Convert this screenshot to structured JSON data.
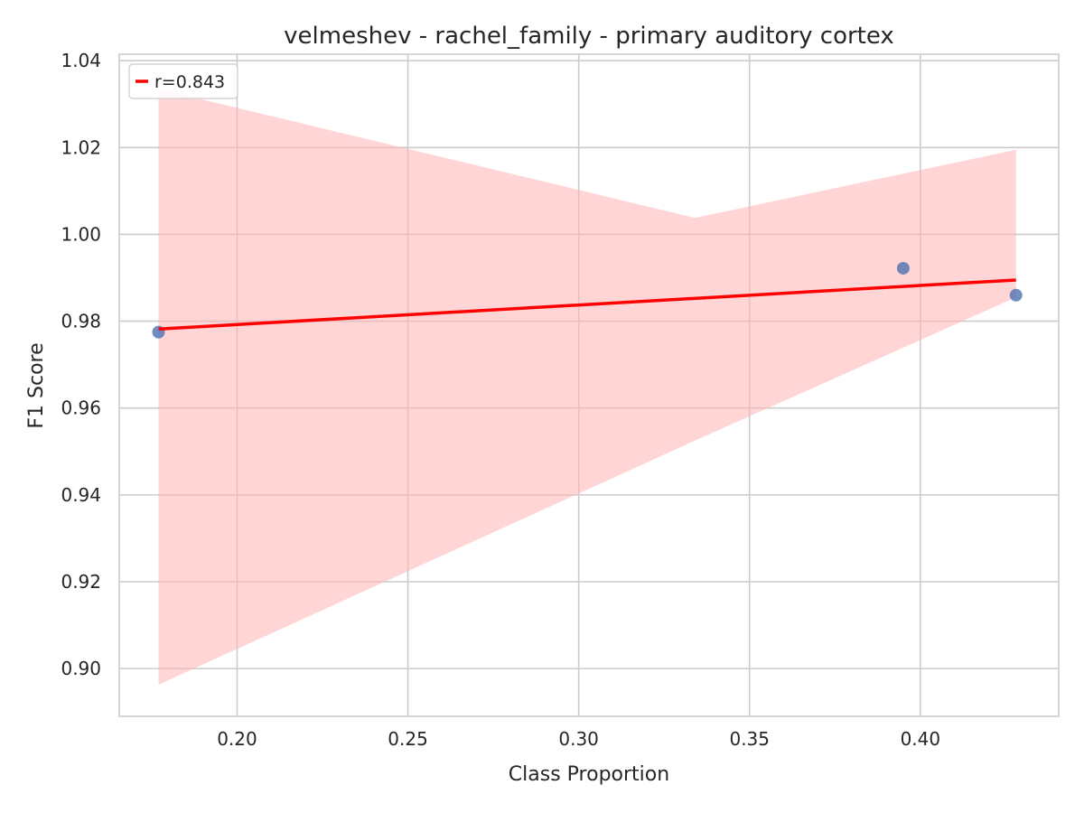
{
  "chart_data": {
    "type": "scatter",
    "title": "velmeshev - rachel_family - primary auditory cortex",
    "xlabel": "Class Proportion",
    "ylabel": "F1 Score",
    "xlim": [
      0.1655,
      0.4405
    ],
    "ylim": [
      0.889,
      1.0415
    ],
    "xticks": [
      0.2,
      0.25,
      0.3,
      0.35,
      0.4
    ],
    "xtick_labels": [
      "0.20",
      "0.25",
      "0.30",
      "0.35",
      "0.40"
    ],
    "yticks": [
      0.9,
      0.92,
      0.94,
      0.96,
      0.98,
      1.0,
      1.02,
      1.04
    ],
    "ytick_labels": [
      "0.90",
      "0.92",
      "0.94",
      "0.96",
      "0.98",
      "1.00",
      "1.02",
      "1.04"
    ],
    "grid": true,
    "points": [
      {
        "x": 0.177,
        "y": 0.9775
      },
      {
        "x": 0.395,
        "y": 0.9922
      },
      {
        "x": 0.428,
        "y": 0.986
      }
    ],
    "regression_line": {
      "x": [
        0.177,
        0.428
      ],
      "y": [
        0.9782,
        0.9895
      ]
    },
    "confidence_band": {
      "x": [
        0.177,
        0.334,
        0.428
      ],
      "upper": [
        1.0335,
        1.0038,
        1.0195
      ],
      "lower": [
        0.8963,
        0.9525,
        0.9855
      ]
    },
    "legend": {
      "label": "r=0.843",
      "position": "upper-left"
    },
    "colors": {
      "points": "#4c72b0",
      "line": "#ff0000",
      "band": "#ffb3b3",
      "grid": "#cccccc",
      "axes": "#cccccc",
      "text": "#262626"
    }
  }
}
